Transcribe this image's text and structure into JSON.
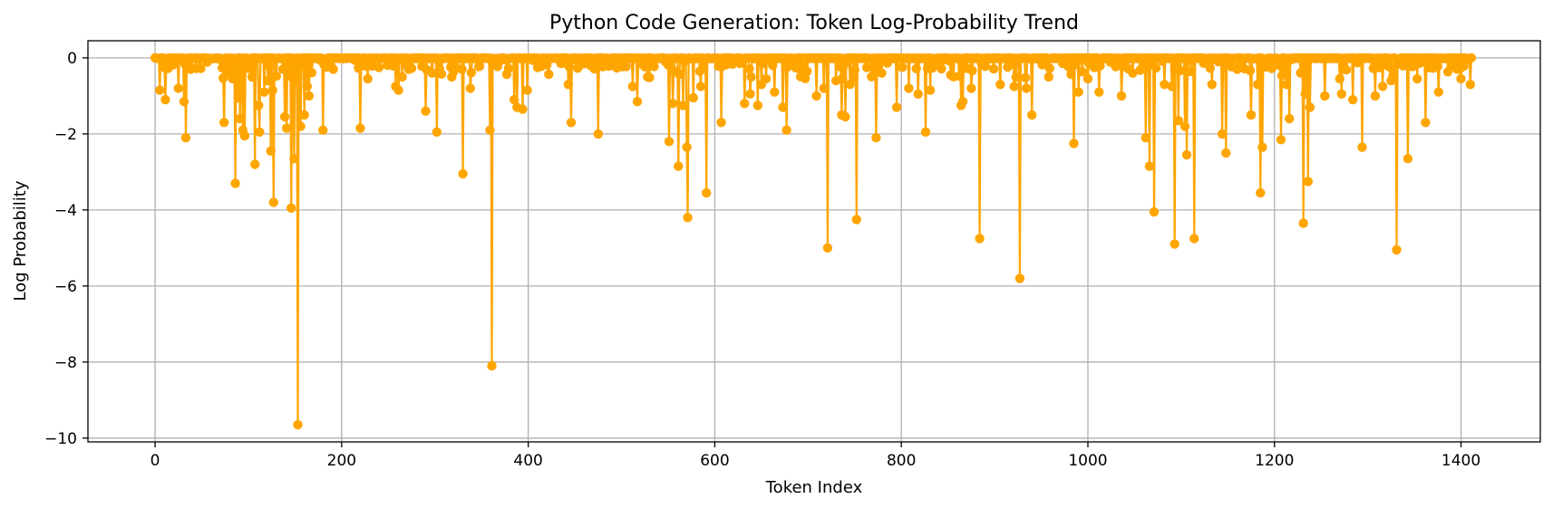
{
  "chart_data": {
    "type": "line",
    "title": "Python Code Generation: Token Log-Probability Trend",
    "xlabel": "Token Index",
    "ylabel": "Log Probability",
    "xlim": [
      -72,
      1485
    ],
    "ylim": [
      -10.1,
      0.45
    ],
    "xticks": [
      0,
      200,
      400,
      600,
      800,
      1000,
      1200,
      1400
    ],
    "yticks": [
      0,
      -2,
      -4,
      -6,
      -8,
      -10
    ],
    "xtick_labels": [
      "0",
      "200",
      "400",
      "600",
      "800",
      "1000",
      "1200",
      "1400"
    ],
    "ytick_labels": [
      "0",
      "−2",
      "−4",
      "−6",
      "−8",
      "−10"
    ],
    "grid": true,
    "line_color": "#FFA500",
    "marker": "circle",
    "n_points": 1412,
    "series": [
      {
        "notable_points": [
          [
            0,
            0
          ],
          [
            5,
            -0.85
          ],
          [
            11,
            -1.1
          ],
          [
            25,
            -0.8
          ],
          [
            31,
            -1.15
          ],
          [
            33,
            -2.1
          ],
          [
            38,
            -0.3
          ],
          [
            74,
            -1.7
          ],
          [
            80,
            -0.4
          ],
          [
            86,
            -3.3
          ],
          [
            89,
            -1.05
          ],
          [
            91,
            -1.6
          ],
          [
            94,
            -1.9
          ],
          [
            96,
            -2.05
          ],
          [
            104,
            -0.5
          ],
          [
            107,
            -2.8
          ],
          [
            111,
            -1.25
          ],
          [
            112,
            -1.95
          ],
          [
            117,
            -0.9
          ],
          [
            121,
            -0.6
          ],
          [
            124,
            -2.45
          ],
          [
            127,
            -3.8
          ],
          [
            126,
            -0.85
          ],
          [
            139,
            -1.55
          ],
          [
            141,
            -1.85
          ],
          [
            146,
            -3.95
          ],
          [
            149,
            -2.65
          ],
          [
            151,
            -0.6
          ],
          [
            153,
            -9.65
          ],
          [
            156,
            -1.8
          ],
          [
            160,
            -1.5
          ],
          [
            163,
            -0.75
          ],
          [
            165,
            -1.0
          ],
          [
            180,
            -1.9
          ],
          [
            220,
            -1.85
          ],
          [
            228,
            -0.55
          ],
          [
            258,
            -0.75
          ],
          [
            261,
            -0.85
          ],
          [
            265,
            -0.5
          ],
          [
            290,
            -1.4
          ],
          [
            297,
            -0.4
          ],
          [
            302,
            -1.95
          ],
          [
            318,
            -0.5
          ],
          [
            330,
            -3.05
          ],
          [
            338,
            -0.8
          ],
          [
            359,
            -1.9
          ],
          [
            361,
            -8.1
          ],
          [
            385,
            -1.1
          ],
          [
            388,
            -1.3
          ],
          [
            394,
            -1.35
          ],
          [
            399,
            -0.85
          ],
          [
            443,
            -0.7
          ],
          [
            446,
            -1.7
          ],
          [
            475,
            -2.0
          ],
          [
            512,
            -0.75
          ],
          [
            517,
            -1.15
          ],
          [
            528,
            -0.5
          ],
          [
            551,
            -2.2
          ],
          [
            555,
            -1.2
          ],
          [
            561,
            -2.85
          ],
          [
            566,
            -1.25
          ],
          [
            570,
            -2.35
          ],
          [
            571,
            -4.2
          ],
          [
            577,
            -1.05
          ],
          [
            585,
            -0.75
          ],
          [
            591,
            -3.55
          ],
          [
            607,
            -1.7
          ],
          [
            632,
            -1.2
          ],
          [
            638,
            -0.95
          ],
          [
            646,
            -1.25
          ],
          [
            650,
            -0.7
          ],
          [
            664,
            -0.9
          ],
          [
            673,
            -1.3
          ],
          [
            677,
            -1.9
          ],
          [
            709,
            -1.0
          ],
          [
            717,
            -0.8
          ],
          [
            721,
            -5.0
          ],
          [
            730,
            -0.6
          ],
          [
            736,
            -1.5
          ],
          [
            740,
            -1.55
          ],
          [
            745,
            -0.7
          ],
          [
            752,
            -4.25
          ],
          [
            773,
            -2.1
          ],
          [
            779,
            -0.4
          ],
          [
            795,
            -1.3
          ],
          [
            808,
            -0.8
          ],
          [
            818,
            -0.95
          ],
          [
            826,
            -1.95
          ],
          [
            831,
            -0.85
          ],
          [
            864,
            -1.25
          ],
          [
            866,
            -1.15
          ],
          [
            875,
            -0.8
          ],
          [
            884,
            -4.75
          ],
          [
            906,
            -0.7
          ],
          [
            921,
            -0.75
          ],
          [
            927,
            -5.8
          ],
          [
            934,
            -0.8
          ],
          [
            940,
            -1.5
          ],
          [
            958,
            -0.5
          ],
          [
            985,
            -2.25
          ],
          [
            990,
            -0.9
          ],
          [
            1000,
            -0.55
          ],
          [
            1012,
            -0.9
          ],
          [
            1036,
            -1.0
          ],
          [
            1048,
            -0.4
          ],
          [
            1062,
            -2.1
          ],
          [
            1066,
            -2.85
          ],
          [
            1071,
            -4.05
          ],
          [
            1082,
            -0.7
          ],
          [
            1090,
            -0.75
          ],
          [
            1093,
            -4.9
          ],
          [
            1097,
            -1.65
          ],
          [
            1104,
            -1.8
          ],
          [
            1106,
            -2.55
          ],
          [
            1114,
            -4.75
          ],
          [
            1133,
            -0.7
          ],
          [
            1144,
            -2.0
          ],
          [
            1148,
            -2.5
          ],
          [
            1175,
            -1.5
          ],
          [
            1182,
            -0.7
          ],
          [
            1185,
            -3.55
          ],
          [
            1187,
            -2.35
          ],
          [
            1207,
            -2.15
          ],
          [
            1213,
            -0.7
          ],
          [
            1216,
            -1.6
          ],
          [
            1231,
            -4.35
          ],
          [
            1233,
            -0.95
          ],
          [
            1236,
            -3.25
          ],
          [
            1238,
            -1.3
          ],
          [
            1254,
            -1.0
          ],
          [
            1270,
            -0.55
          ],
          [
            1272,
            -0.95
          ],
          [
            1284,
            -1.1
          ],
          [
            1294,
            -2.35
          ],
          [
            1308,
            -1.0
          ],
          [
            1316,
            -0.75
          ],
          [
            1325,
            -0.6
          ],
          [
            1331,
            -5.05
          ],
          [
            1343,
            -2.65
          ],
          [
            1353,
            -0.55
          ],
          [
            1362,
            -1.7
          ],
          [
            1376,
            -0.9
          ],
          [
            1400,
            -0.55
          ],
          [
            1410,
            -0.7
          ],
          [
            1411,
            0
          ]
        ]
      }
    ]
  }
}
